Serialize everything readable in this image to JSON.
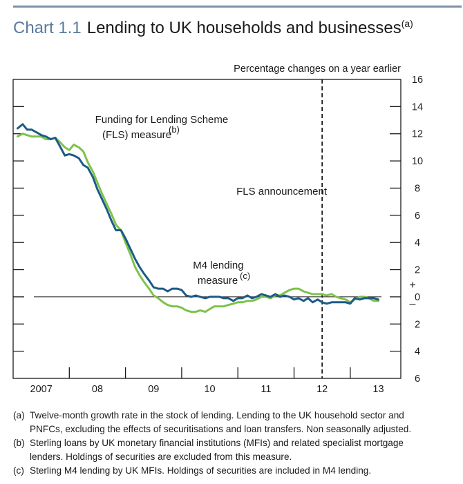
{
  "header": {
    "chart_number": "Chart 1.1",
    "title": "Lending to UK households and businesses",
    "title_note": "(a)"
  },
  "colors": {
    "rule": "#7a8fa8",
    "title_number": "#5b7a9d",
    "fls_series": "#7dc24b",
    "m4_series": "#1c5a85"
  },
  "chart_data": {
    "type": "line",
    "title": "Lending to UK households and businesses",
    "ylabel": "Percentage changes on a year earlier",
    "ylim": [
      -6,
      16
    ],
    "yticks": [
      16,
      14,
      12,
      10,
      8,
      6,
      4,
      2,
      0,
      -2,
      -4,
      -6
    ],
    "ytick_labels": [
      "16",
      "14",
      "12",
      "10",
      "8",
      "6",
      "4",
      "2",
      "0",
      "2",
      "4",
      "6"
    ],
    "plus_sign": "+",
    "minus_sign": "–",
    "xlim": [
      2006.5,
      2013.4
    ],
    "x_categories": [
      {
        "label": "2007",
        "x": 2007.0
      },
      {
        "label": "08",
        "x": 2008.0
      },
      {
        "label": "09",
        "x": 2009.0
      },
      {
        "label": "10",
        "x": 2010.0
      },
      {
        "label": "11",
        "x": 2011.0
      },
      {
        "label": "12",
        "x": 2012.0
      },
      {
        "label": "13",
        "x": 2013.0
      }
    ],
    "x_tick_positions": [
      2007.5,
      2008.5,
      2009.5,
      2010.5,
      2011.5,
      2012.5
    ],
    "grid": false,
    "series": [
      {
        "name": "Funding for Lending Scheme (FLS) measure",
        "note": "(b)",
        "color": "#7dc24b",
        "points": [
          [
            2006.58,
            11.8
          ],
          [
            2006.67,
            12.0
          ],
          [
            2006.75,
            11.9
          ],
          [
            2006.83,
            11.8
          ],
          [
            2006.92,
            11.8
          ],
          [
            2007.0,
            11.8
          ],
          [
            2007.08,
            11.6
          ],
          [
            2007.17,
            11.6
          ],
          [
            2007.25,
            11.7
          ],
          [
            2007.33,
            11.4
          ],
          [
            2007.42,
            11.0
          ],
          [
            2007.5,
            10.8
          ],
          [
            2007.58,
            11.2
          ],
          [
            2007.67,
            11.0
          ],
          [
            2007.75,
            10.7
          ],
          [
            2007.83,
            9.9
          ],
          [
            2007.92,
            9.2
          ],
          [
            2008.0,
            8.4
          ],
          [
            2008.08,
            7.6
          ],
          [
            2008.17,
            6.8
          ],
          [
            2008.25,
            6.1
          ],
          [
            2008.33,
            5.3
          ],
          [
            2008.42,
            4.9
          ],
          [
            2008.5,
            4.0
          ],
          [
            2008.58,
            3.2
          ],
          [
            2008.67,
            2.2
          ],
          [
            2008.75,
            1.6
          ],
          [
            2008.83,
            1.1
          ],
          [
            2008.92,
            0.6
          ],
          [
            2009.0,
            0.1
          ],
          [
            2009.08,
            -0.1
          ],
          [
            2009.17,
            -0.4
          ],
          [
            2009.25,
            -0.6
          ],
          [
            2009.33,
            -0.7
          ],
          [
            2009.42,
            -0.7
          ],
          [
            2009.5,
            -0.8
          ],
          [
            2009.58,
            -1.0
          ],
          [
            2009.67,
            -1.1
          ],
          [
            2009.75,
            -1.1
          ],
          [
            2009.83,
            -1.0
          ],
          [
            2009.92,
            -1.1
          ],
          [
            2010.0,
            -0.9
          ],
          [
            2010.08,
            -0.7
          ],
          [
            2010.17,
            -0.7
          ],
          [
            2010.25,
            -0.7
          ],
          [
            2010.33,
            -0.6
          ],
          [
            2010.42,
            -0.5
          ],
          [
            2010.5,
            -0.4
          ],
          [
            2010.58,
            -0.4
          ],
          [
            2010.67,
            -0.3
          ],
          [
            2010.75,
            -0.3
          ],
          [
            2010.83,
            -0.2
          ],
          [
            2010.92,
            0.0
          ],
          [
            2011.0,
            0.0
          ],
          [
            2011.08,
            -0.1
          ],
          [
            2011.17,
            0.1
          ],
          [
            2011.25,
            0.1
          ],
          [
            2011.33,
            0.3
          ],
          [
            2011.42,
            0.5
          ],
          [
            2011.5,
            0.6
          ],
          [
            2011.58,
            0.6
          ],
          [
            2011.67,
            0.4
          ],
          [
            2011.75,
            0.3
          ],
          [
            2011.83,
            0.2
          ],
          [
            2011.92,
            0.2
          ],
          [
            2012.0,
            0.2
          ],
          [
            2012.08,
            0.1
          ],
          [
            2012.17,
            0.2
          ],
          [
            2012.25,
            0.0
          ],
          [
            2012.33,
            -0.1
          ],
          [
            2012.42,
            -0.2
          ],
          [
            2012.5,
            -0.4
          ],
          [
            2012.58,
            -0.2
          ],
          [
            2012.67,
            0.0
          ],
          [
            2012.75,
            0.0
          ],
          [
            2012.83,
            -0.1
          ],
          [
            2012.92,
            -0.3
          ],
          [
            2013.0,
            -0.3
          ]
        ]
      },
      {
        "name": "M4 lending measure",
        "note": "(c)",
        "color": "#1c5a85",
        "points": [
          [
            2006.58,
            12.4
          ],
          [
            2006.67,
            12.7
          ],
          [
            2006.75,
            12.3
          ],
          [
            2006.83,
            12.3
          ],
          [
            2006.92,
            12.1
          ],
          [
            2007.0,
            11.9
          ],
          [
            2007.08,
            11.8
          ],
          [
            2007.17,
            11.6
          ],
          [
            2007.25,
            11.7
          ],
          [
            2007.33,
            11.1
          ],
          [
            2007.42,
            10.4
          ],
          [
            2007.5,
            10.5
          ],
          [
            2007.58,
            10.4
          ],
          [
            2007.67,
            10.2
          ],
          [
            2007.75,
            9.7
          ],
          [
            2007.83,
            9.5
          ],
          [
            2007.92,
            8.8
          ],
          [
            2008.0,
            7.9
          ],
          [
            2008.08,
            7.2
          ],
          [
            2008.17,
            6.4
          ],
          [
            2008.25,
            5.6
          ],
          [
            2008.33,
            4.9
          ],
          [
            2008.42,
            4.9
          ],
          [
            2008.5,
            4.3
          ],
          [
            2008.58,
            3.6
          ],
          [
            2008.67,
            2.8
          ],
          [
            2008.75,
            2.2
          ],
          [
            2008.83,
            1.7
          ],
          [
            2008.92,
            1.2
          ],
          [
            2009.0,
            0.7
          ],
          [
            2009.08,
            0.6
          ],
          [
            2009.17,
            0.6
          ],
          [
            2009.25,
            0.4
          ],
          [
            2009.33,
            0.6
          ],
          [
            2009.42,
            0.6
          ],
          [
            2009.5,
            0.5
          ],
          [
            2009.58,
            0.1
          ],
          [
            2009.67,
            0.0
          ],
          [
            2009.75,
            0.1
          ],
          [
            2009.83,
            0.0
          ],
          [
            2009.92,
            -0.1
          ],
          [
            2010.0,
            0.0
          ],
          [
            2010.08,
            0.0
          ],
          [
            2010.17,
            0.0
          ],
          [
            2010.25,
            -0.1
          ],
          [
            2010.33,
            -0.1
          ],
          [
            2010.42,
            -0.3
          ],
          [
            2010.5,
            -0.1
          ],
          [
            2010.58,
            -0.1
          ],
          [
            2010.67,
            0.1
          ],
          [
            2010.75,
            -0.1
          ],
          [
            2010.83,
            0.0
          ],
          [
            2010.92,
            0.2
          ],
          [
            2011.0,
            0.1
          ],
          [
            2011.08,
            0.0
          ],
          [
            2011.17,
            0.2
          ],
          [
            2011.25,
            0.0
          ],
          [
            2011.33,
            0.1
          ],
          [
            2011.42,
            0.0
          ],
          [
            2011.5,
            -0.2
          ],
          [
            2011.58,
            -0.1
          ],
          [
            2011.67,
            -0.3
          ],
          [
            2011.75,
            -0.1
          ],
          [
            2011.83,
            -0.4
          ],
          [
            2011.92,
            -0.2
          ],
          [
            2012.0,
            -0.4
          ],
          [
            2012.08,
            -0.5
          ],
          [
            2012.17,
            -0.4
          ],
          [
            2012.25,
            -0.4
          ],
          [
            2012.33,
            -0.4
          ],
          [
            2012.42,
            -0.4
          ],
          [
            2012.5,
            -0.5
          ],
          [
            2012.58,
            -0.1
          ],
          [
            2012.67,
            -0.2
          ],
          [
            2012.75,
            -0.1
          ],
          [
            2012.83,
            -0.1
          ],
          [
            2012.92,
            -0.1
          ],
          [
            2013.0,
            -0.2
          ]
        ]
      }
    ],
    "annotations": {
      "fls_label_line1": "Funding for Lending Scheme",
      "fls_label_line2": "(FLS) measure",
      "fls_label_note": "(b)",
      "m4_label_line1": "M4 lending",
      "m4_label_line2": "measure",
      "m4_label_note": "(c)",
      "announcement_label": "FLS announcement",
      "announcement_x": 2012.0
    }
  },
  "footnotes": [
    {
      "label": "(a)",
      "lines": [
        "Twelve-month growth rate in the stock of lending.  Lending to the UK household sector and",
        "PNFCs, excluding the effects of securitisations and loan transfers.  Non seasonally adjusted."
      ]
    },
    {
      "label": "(b)",
      "lines": [
        "Sterling loans by UK monetary financial institutions (MFIs) and related specialist mortgage",
        "lenders.  Holdings of securities are excluded from this measure."
      ]
    },
    {
      "label": "(c)",
      "lines": [
        "Sterling M4 lending by UK MFIs.  Holdings of securities are included in M4 lending."
      ]
    }
  ]
}
